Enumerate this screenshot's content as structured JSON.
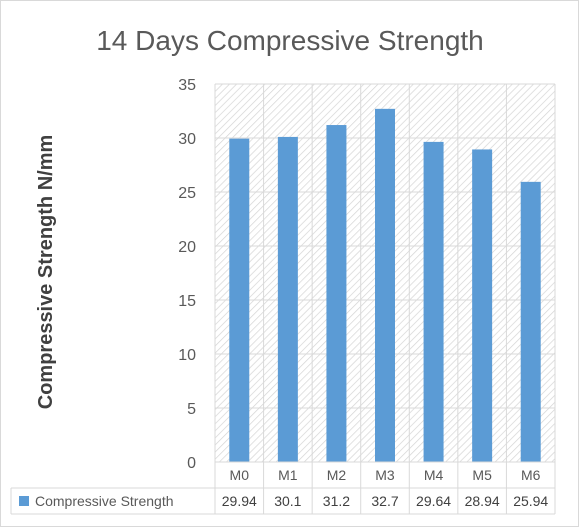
{
  "chart_data": {
    "type": "bar",
    "title": "14 Days Compressive Strength",
    "xlabel": "",
    "ylabel": "Compressive Strength N/mm",
    "categories": [
      "M0",
      "M1",
      "M2",
      "M3",
      "M4",
      "M5",
      "M6"
    ],
    "series": [
      {
        "name": "Compressive Strength",
        "values": [
          29.94,
          30.1,
          31.2,
          32.7,
          29.64,
          28.94,
          25.94
        ],
        "value_labels": [
          "29.94",
          "30.1",
          "31.2",
          "32.7",
          "29.64",
          "28.94",
          "25.94"
        ],
        "color": "#5b9bd5"
      }
    ],
    "ylim": [
      0,
      35
    ],
    "yticks": [
      0,
      5,
      10,
      15,
      20,
      25,
      30,
      35
    ],
    "grid": true,
    "legend": "data-table",
    "data_table": true,
    "plot_background": "diagonal-hatch"
  }
}
